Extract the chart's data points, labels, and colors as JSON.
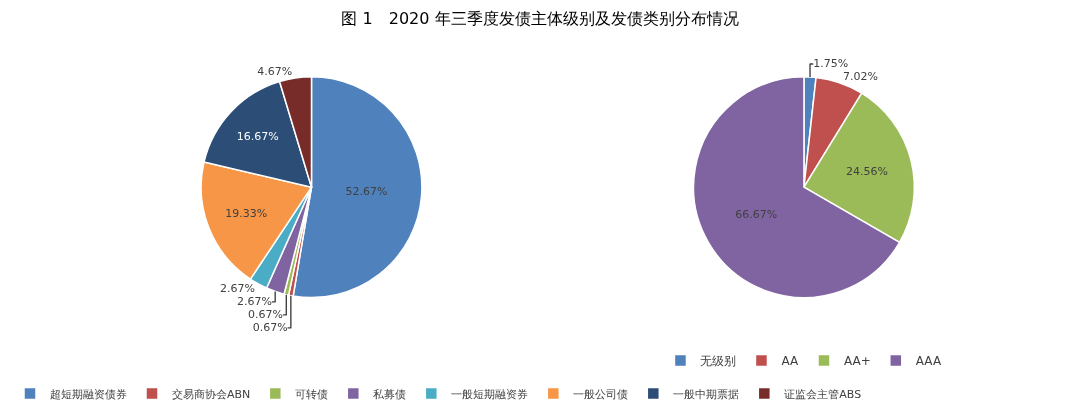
{
  "chart_data": [
    {
      "type": "pie",
      "title": "图 1　2020 年三季度发债主体级别及发债类别分布情况",
      "categories": [
        "超短期融资债券",
        "交易商协会ABN",
        "可转债",
        "私募债",
        "一般短期融资券",
        "一般公司债",
        "一般中期票据",
        "证监会主管ABS"
      ],
      "values": [
        52.67,
        0.67,
        0.67,
        2.67,
        2.67,
        19.33,
        16.67,
        4.67
      ],
      "value_labels": [
        "52.67%",
        "0.67%",
        "0.67%",
        "2.67%",
        "2.67%",
        "19.33%",
        "16.67%",
        "4.67%"
      ],
      "colors": [
        "#4f81bd",
        "#c0504d",
        "#9bbb59",
        "#8064a2",
        "#4bacc6",
        "#f79646",
        "#2c4d75",
        "#772c2a"
      ],
      "legend": "bottom"
    },
    {
      "type": "pie",
      "categories": [
        "无级别",
        "AA",
        "AA+",
        "AAA"
      ],
      "values": [
        1.75,
        7.02,
        24.56,
        66.67
      ],
      "value_labels": [
        "1.75%",
        "7.02%",
        "24.56%",
        "66.67%"
      ],
      "colors": [
        "#4f81bd",
        "#c0504d",
        "#9bbb59",
        "#8064a2"
      ],
      "legend": "bottom"
    }
  ]
}
